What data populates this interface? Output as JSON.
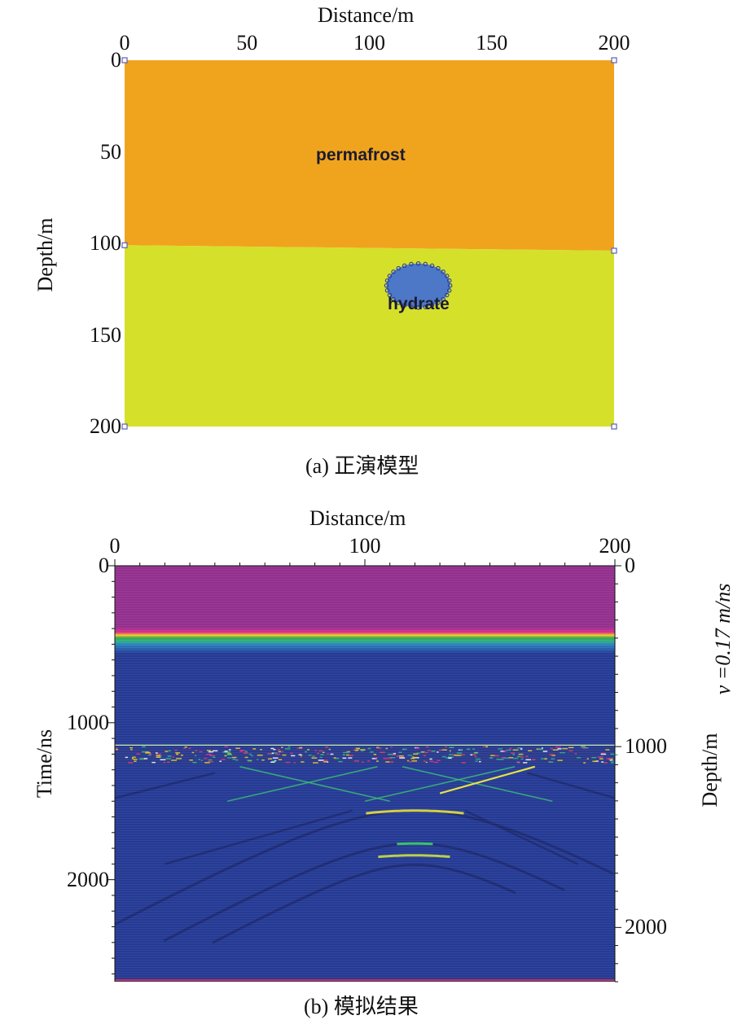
{
  "chart_data": [
    {
      "id": "a",
      "type": "diagram-model",
      "caption": "(a) 正演模型",
      "xlabel": "Distance/m",
      "ylabel": "Depth/m",
      "xlim": [
        0,
        200
      ],
      "ylim": [
        0,
        200
      ],
      "x_ticks": [
        0,
        50,
        100,
        150,
        200
      ],
      "y_ticks": [
        0,
        50,
        100,
        150,
        200
      ],
      "layers": [
        {
          "name": "permafrost",
          "depth_top": 0,
          "depth_bottom_left": 101,
          "depth_bottom_right": 104,
          "color": "#f0a41e"
        },
        {
          "name": "",
          "depth_top": 101,
          "depth_bottom": 200,
          "color": "#d5e02a"
        }
      ],
      "anomaly": {
        "name": "hydrate",
        "center_x": 120,
        "center_depth": 123,
        "radius_x": 13,
        "radius_depth": 12,
        "color": "#4d78c8",
        "node_color": "#2a3f9a"
      },
      "label_positions": {
        "permafrost": {
          "x": 100,
          "depth": 48
        }
      },
      "vertex_color": "#5b5fb8"
    },
    {
      "id": "b",
      "type": "heatmap",
      "caption": "(b) 模拟结果",
      "xlabel": "Distance/m",
      "ylabel": "Time/ns",
      "ylabel_right": "Depth/m",
      "annotation": "v =0.17 m/ns",
      "xlim": [
        0,
        200
      ],
      "ylim": [
        0,
        2650
      ],
      "x_ticks": [
        0,
        100,
        200
      ],
      "y_ticks": [
        0,
        1000,
        2000
      ],
      "y_ticks_right": [
        0,
        1000,
        2000
      ],
      "y_right_lim": [
        0,
        2300
      ],
      "background_color": "#253a94",
      "top_band_color": "#93308e",
      "reflector_time": 1200,
      "bottom_line_color": "#d03040",
      "hyperbola_apexes_ns": [
        1560,
        1770,
        1845
      ]
    }
  ]
}
